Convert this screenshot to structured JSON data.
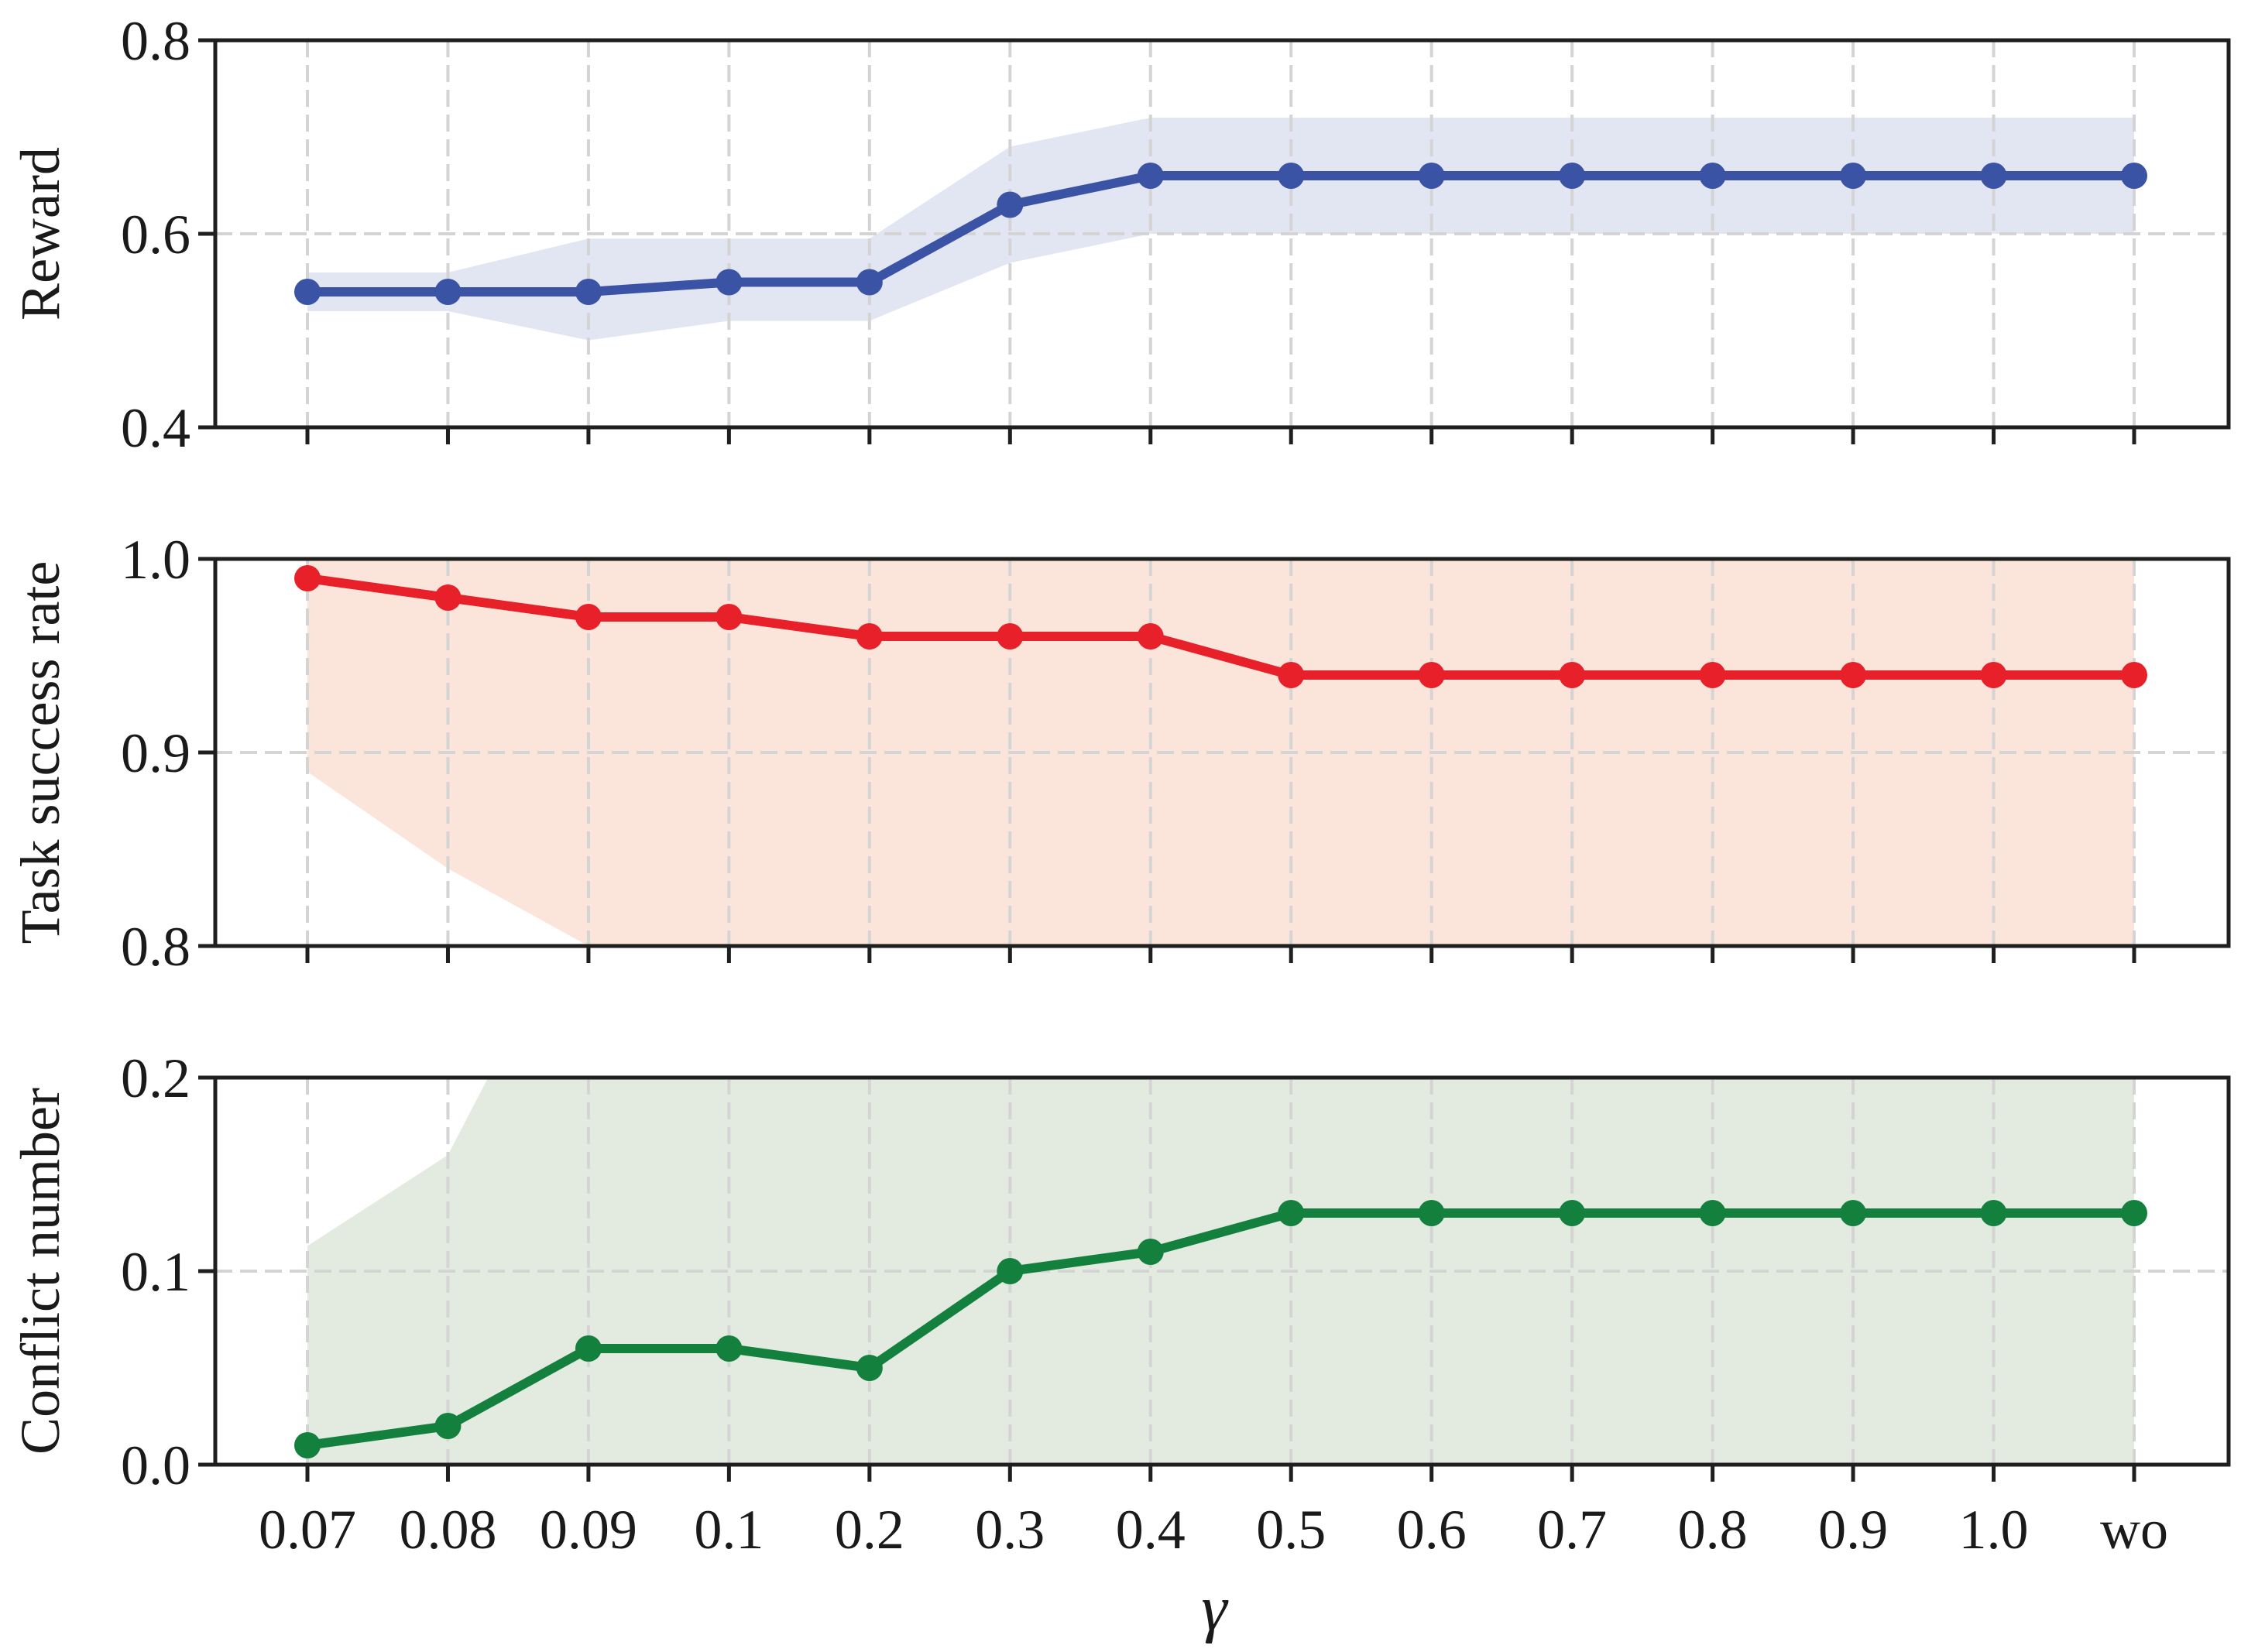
{
  "chart_data": [
    {
      "type": "line",
      "categories": [
        "0.07",
        "0.08",
        "0.09",
        "0.1",
        "0.2",
        "0.3",
        "0.4",
        "0.5",
        "0.6",
        "0.7",
        "0.8",
        "0.9",
        "1.0",
        "wo"
      ],
      "series": [
        {
          "values": [
            0.54,
            0.54,
            0.54,
            0.55,
            0.55,
            0.63,
            0.66,
            0.66,
            0.66,
            0.66,
            0.66,
            0.66,
            0.66,
            0.66
          ],
          "band_upper": [
            0.56,
            0.56,
            0.595,
            0.595,
            0.595,
            0.69,
            0.72,
            0.72,
            0.72,
            0.72,
            0.72,
            0.72,
            0.72,
            0.72
          ],
          "band_lower": [
            0.52,
            0.52,
            0.49,
            0.51,
            0.51,
            0.57,
            0.6,
            0.6,
            0.6,
            0.6,
            0.6,
            0.6,
            0.6,
            0.6
          ],
          "color": "#3a53a4",
          "band_color": "#e2e5f2"
        }
      ],
      "ylabel": "Reward",
      "ylim": [
        0.4,
        0.8
      ],
      "yticks": [
        "0.4",
        "0.6",
        "0.8"
      ],
      "ytick_values": [
        0.4,
        0.6,
        0.8
      ],
      "grid": true
    },
    {
      "type": "line",
      "categories": [
        "0.07",
        "0.08",
        "0.09",
        "0.1",
        "0.2",
        "0.3",
        "0.4",
        "0.5",
        "0.6",
        "0.7",
        "0.8",
        "0.9",
        "1.0",
        "wo"
      ],
      "series": [
        {
          "values": [
            0.99,
            0.98,
            0.97,
            0.97,
            0.96,
            0.96,
            0.96,
            0.94,
            0.94,
            0.94,
            0.94,
            0.94,
            0.94,
            0.94
          ],
          "band_upper": [
            1.0,
            1.0,
            1.0,
            1.0,
            1.0,
            1.0,
            1.0,
            1.0,
            1.0,
            1.0,
            1.0,
            1.0,
            1.0,
            1.0
          ],
          "band_lower": [
            0.89,
            0.84,
            0.8,
            0.78,
            0.76,
            0.76,
            0.76,
            0.72,
            0.72,
            0.72,
            0.72,
            0.72,
            0.72,
            0.72
          ],
          "color": "#e8202a",
          "band_color": "#fbe5da"
        }
      ],
      "ylabel": "Task success rate",
      "ylim": [
        0.8,
        1.0
      ],
      "yticks": [
        "0.8",
        "0.9",
        "1.0"
      ],
      "ytick_values": [
        0.8,
        0.9,
        1.0
      ],
      "grid": true
    },
    {
      "type": "line",
      "categories": [
        "0.07",
        "0.08",
        "0.09",
        "0.1",
        "0.2",
        "0.3",
        "0.4",
        "0.5",
        "0.6",
        "0.7",
        "0.8",
        "0.9",
        "1.0",
        "wo"
      ],
      "series": [
        {
          "values": [
            0.01,
            0.02,
            0.06,
            0.06,
            0.05,
            0.1,
            0.11,
            0.13,
            0.13,
            0.13,
            0.13,
            0.13,
            0.13,
            0.13
          ],
          "band_upper": [
            0.113,
            0.16,
            0.3,
            0.3,
            0.3,
            0.3,
            0.3,
            0.3,
            0.3,
            0.3,
            0.3,
            0.3,
            0.3,
            0.3
          ],
          "band_lower": [
            0.0,
            0.0,
            0.0,
            0.0,
            0.0,
            0.0,
            0.0,
            0.0,
            0.0,
            0.0,
            0.0,
            0.0,
            0.0,
            0.0
          ],
          "color": "#13803e",
          "band_color": "#e3ebe1"
        }
      ],
      "ylabel": "Conflict number",
      "ylim": [
        0.0,
        0.2
      ],
      "yticks": [
        "0.0",
        "0.1",
        "0.2"
      ],
      "ytick_values": [
        0.0,
        0.1,
        0.2
      ],
      "grid": true
    }
  ],
  "xlabel": "γ",
  "colors": {
    "grid": "#d4d4d4",
    "spine": "#1f1f1f"
  }
}
